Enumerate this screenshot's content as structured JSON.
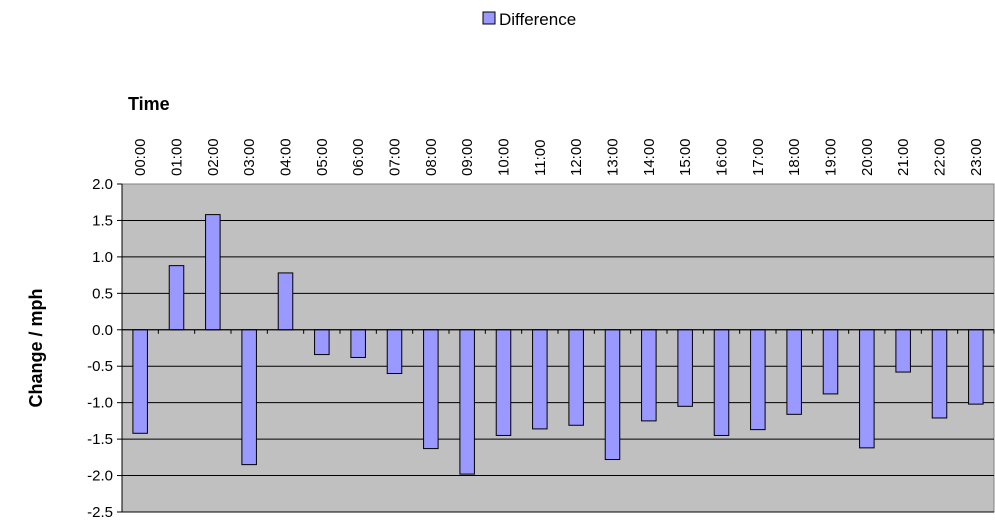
{
  "chart_data": {
    "type": "bar",
    "title": "",
    "xlabel": "Time",
    "ylabel": "Change / mph",
    "ylim": [
      -2.5,
      2.0
    ],
    "yticks": [
      "2.0",
      "1.5",
      "1.0",
      "0.5",
      "0.0",
      "-0.5",
      "-1.0",
      "-1.5",
      "-2.0",
      "-2.5"
    ],
    "categories": [
      "00:00",
      "01:00",
      "02:00",
      "03:00",
      "04:00",
      "05:00",
      "06:00",
      "07:00",
      "08:00",
      "09:00",
      "10:00",
      "11:00",
      "12:00",
      "13:00",
      "14:00",
      "15:00",
      "16:00",
      "17:00",
      "18:00",
      "19:00",
      "20:00",
      "21:00",
      "22:00",
      "23:00"
    ],
    "series": [
      {
        "name": "Difference",
        "color": "#9999ff",
        "values": [
          -1.42,
          0.88,
          1.58,
          -1.85,
          0.78,
          -0.34,
          -0.38,
          -0.6,
          -1.63,
          -1.98,
          -1.45,
          -1.36,
          -1.31,
          -1.78,
          -1.25,
          -1.05,
          -1.45,
          -1.37,
          -1.16,
          -0.88,
          -1.62,
          -0.58,
          -1.21,
          -1.02
        ]
      }
    ],
    "plot_background": "#c0c0c0",
    "grid": true,
    "legend": "top-center",
    "x_axis_position": "top"
  }
}
